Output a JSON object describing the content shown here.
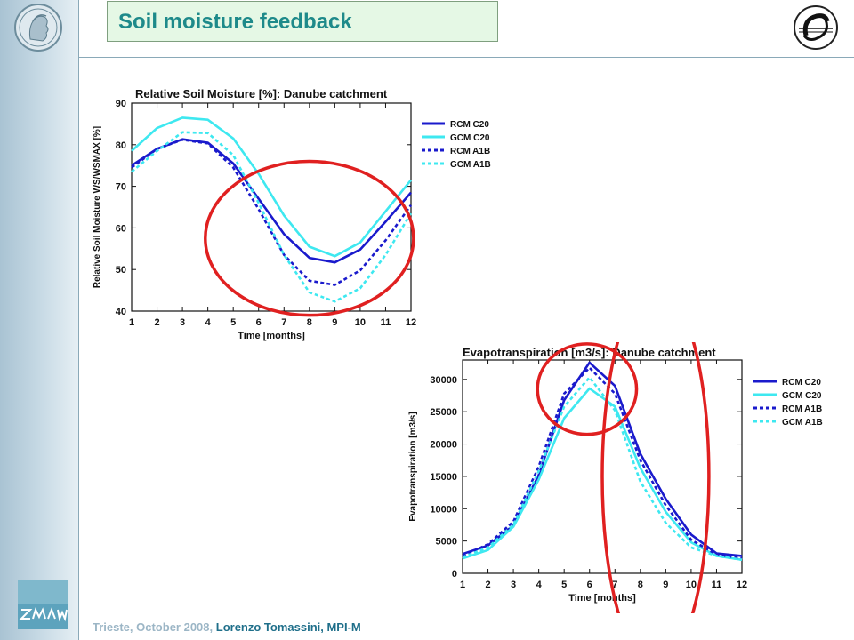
{
  "slide": {
    "title": "Soil moisture feedback",
    "footer_place_date": "Trieste, October 2008,",
    "footer_author": "Lorenzo Tomassini, MPI-M",
    "logos": {
      "left": "max-planck-minerva-logo",
      "right": "institute-emblem-logo",
      "bottom": "zmaw-logo"
    },
    "colors": {
      "title": "#1e8a8a",
      "title_bg": "#e5f8e5",
      "annotation": "#e02020"
    }
  },
  "chart_data": [
    {
      "type": "line",
      "title": "Relative Soil Moisture [%]: Danube catchment",
      "xlabel": "Time [months]",
      "ylabel": "Relative Soil Moisture WS/WSMAX [%]",
      "x": [
        1,
        2,
        3,
        4,
        5,
        6,
        7,
        8,
        9,
        10,
        11,
        12
      ],
      "xticks": [
        "1",
        "2",
        "3",
        "4",
        "5",
        "6",
        "7",
        "8",
        "9",
        "10",
        "11",
        "12"
      ],
      "xlim": [
        1,
        12
      ],
      "ylim": [
        40,
        90
      ],
      "yticks": [
        40,
        50,
        60,
        70,
        80,
        90
      ],
      "grid": false,
      "legend": "right",
      "series": [
        {
          "name": "RCM C20",
          "color": "#1a1acc",
          "dash": "solid",
          "values": [
            75,
            79,
            81.3,
            80.5,
            75.5,
            67,
            58.5,
            52.8,
            51.7,
            54.8,
            61.5,
            68.5
          ]
        },
        {
          "name": "GCM C20",
          "color": "#3ee8f0",
          "dash": "solid",
          "values": [
            78.5,
            84,
            86.5,
            86,
            81.5,
            73,
            63,
            55.5,
            53.2,
            56.5,
            64,
            71.5
          ]
        },
        {
          "name": "RCM A1B",
          "color": "#1a1acc",
          "dash": "dotted",
          "values": [
            74.5,
            79,
            81.2,
            80.3,
            74.5,
            64.5,
            53.5,
            47.3,
            46.3,
            49.8,
            57,
            65.5
          ]
        },
        {
          "name": "GCM A1B",
          "color": "#3ee8f0",
          "dash": "dotted",
          "values": [
            73.5,
            78.5,
            83,
            82.8,
            77.5,
            66,
            53.5,
            44.5,
            42.3,
            45.5,
            53.5,
            63.5
          ]
        }
      ],
      "annotations": [
        {
          "shape": "ellipse",
          "color": "#e02020",
          "cx": 8,
          "cy": 57.5,
          "rx_months": 4.1,
          "ry_percent": 18.5
        }
      ]
    },
    {
      "type": "line",
      "title": "Evapotranspiration [m3/s]: Danube catchment",
      "xlabel": "Time [months]",
      "ylabel": "Evapotranspiration [m3/s]",
      "x": [
        1,
        2,
        3,
        4,
        5,
        6,
        7,
        8,
        9,
        10,
        11,
        12
      ],
      "xticks": [
        "1",
        "2",
        "3",
        "4",
        "5",
        "6",
        "7",
        "8",
        "9",
        "10",
        "11",
        "12"
      ],
      "xlim": [
        1,
        12
      ],
      "ylim": [
        0,
        33000
      ],
      "yticks": [
        0,
        5000,
        10000,
        15000,
        20000,
        25000,
        30000
      ],
      "grid": false,
      "legend": "right",
      "series": [
        {
          "name": "RCM C20",
          "color": "#1a1acc",
          "dash": "solid",
          "values": [
            3000,
            4300,
            7400,
            15200,
            26800,
            32600,
            29000,
            18500,
            11500,
            6000,
            3100,
            2700
          ]
        },
        {
          "name": "GCM C20",
          "color": "#3ee8f0",
          "dash": "solid",
          "values": [
            2300,
            3600,
            7200,
            14500,
            24000,
            28600,
            25800,
            16300,
            9500,
            4800,
            2700,
            2100
          ]
        },
        {
          "name": "RCM A1B",
          "color": "#1a1acc",
          "dash": "dotted",
          "values": [
            2700,
            4500,
            8000,
            16500,
            27800,
            31800,
            27800,
            17500,
            10500,
            5200,
            2900,
            2300
          ]
        },
        {
          "name": "GCM A1B",
          "color": "#3ee8f0",
          "dash": "dotted",
          "values": [
            2500,
            4000,
            7500,
            15800,
            25800,
            30300,
            25200,
            14200,
            7800,
            4000,
            2700,
            2100
          ]
        }
      ],
      "annotations": [
        {
          "shape": "ellipse",
          "color": "#e02020",
          "cx": 5.9,
          "cy": 28500,
          "rx_months": 1.95,
          "ry_value": 7000
        },
        {
          "shape": "ellipse",
          "color": "#e02020",
          "cx": 8.6,
          "cy": 15000,
          "rx_months": 2.1,
          "ry_value": 29500
        }
      ]
    }
  ]
}
